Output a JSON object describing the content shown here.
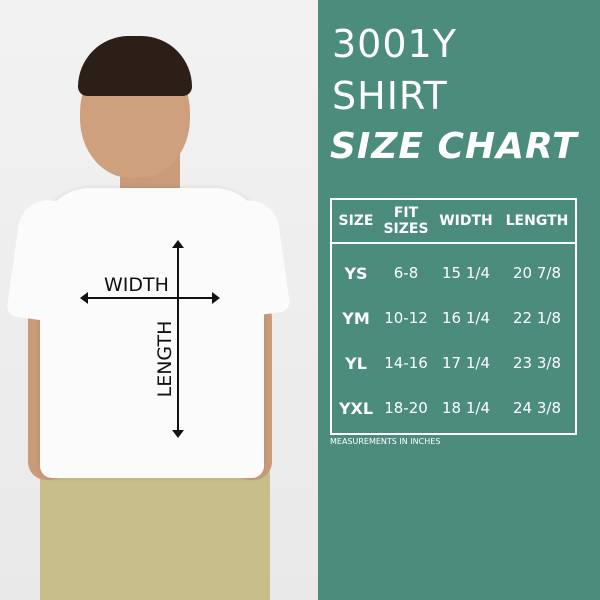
{
  "title": {
    "line1": "3001Y",
    "line2": "SHIRT",
    "line3": "SIZE CHART"
  },
  "diagram": {
    "width_label": "WIDTH",
    "length_label": "LENGTH"
  },
  "table": {
    "headers": [
      "SIZE",
      "FIT SIZES",
      "WIDTH",
      "LENGTH"
    ],
    "rows": [
      [
        "YS",
        "6-8",
        "15 1/4",
        "20 7/8"
      ],
      [
        "YM",
        "10-12",
        "16 1/4",
        "22 1/8"
      ],
      [
        "YL",
        "14-16",
        "17 1/4",
        "23 3/8"
      ],
      [
        "YXL",
        "18-20",
        "18 1/4",
        "24 3/8"
      ]
    ]
  },
  "note": "MEASUREMENTS IN INCHES",
  "colors": {
    "panel": "#4b8c7d",
    "text": "#ffffff",
    "shirt": "#ffffff",
    "pants": "#c9bf8a"
  }
}
